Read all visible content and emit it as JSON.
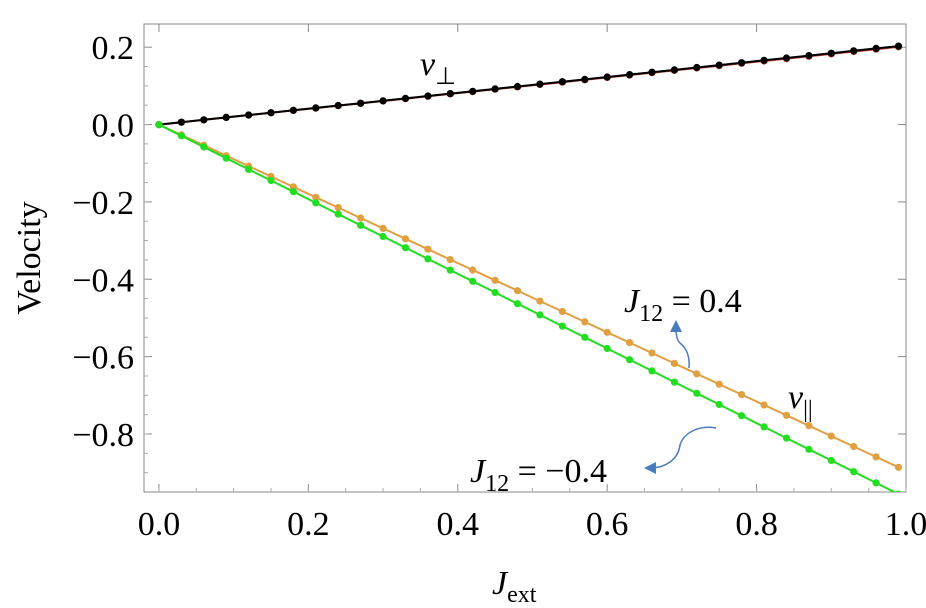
{
  "chart_data": {
    "type": "line",
    "xlabel": "J",
    "xlabel_sub": "ext",
    "ylabel": "Velocity",
    "xlim": [
      -0.02,
      1.0
    ],
    "ylim": [
      -0.95,
      0.26
    ],
    "xticks": [
      "0.0",
      "0.2",
      "0.4",
      "0.6",
      "0.8",
      "1.0"
    ],
    "xtick_values": [
      0.0,
      0.2,
      0.4,
      0.6,
      0.8,
      1.0
    ],
    "yticks": [
      "0.2",
      "0.0",
      "−0.2",
      "−0.4",
      "−0.6",
      "−0.8"
    ],
    "ytick_values": [
      0.2,
      0.0,
      -0.2,
      -0.4,
      -0.6,
      -0.8
    ],
    "x": [
      0.0,
      0.03,
      0.06,
      0.09,
      0.12,
      0.15,
      0.18,
      0.21,
      0.24,
      0.27,
      0.3,
      0.33,
      0.36,
      0.39,
      0.42,
      0.45,
      0.48,
      0.51,
      0.54,
      0.57,
      0.6,
      0.63,
      0.66,
      0.69,
      0.72,
      0.75,
      0.78,
      0.81,
      0.84,
      0.87,
      0.9,
      0.93,
      0.96,
      0.99
    ],
    "series": [
      {
        "color": "#c0392b",
        "slope": 0.203,
        "values": "y = 0.203 x"
      },
      {
        "color": "#000000",
        "slope": 0.205,
        "values": "y = 0.205 x"
      },
      {
        "color": "#e0a040",
        "slope": -0.895,
        "values": "y = -0.895 x"
      },
      {
        "color": "#22dd22",
        "slope": -0.965,
        "values": "y = -0.965 x"
      }
    ],
    "annotations": {
      "v_perp": {
        "base": "v",
        "sub": "⊥"
      },
      "v_par": {
        "base": "v",
        "sub": "||"
      },
      "j_pos": {
        "base": "J",
        "sub": "12",
        "text": " = 0.4"
      },
      "j_neg": {
        "base": "J",
        "sub": "12",
        "text": " = −0.4"
      }
    },
    "grid": false,
    "arrow_color": "#4a7cc0"
  }
}
